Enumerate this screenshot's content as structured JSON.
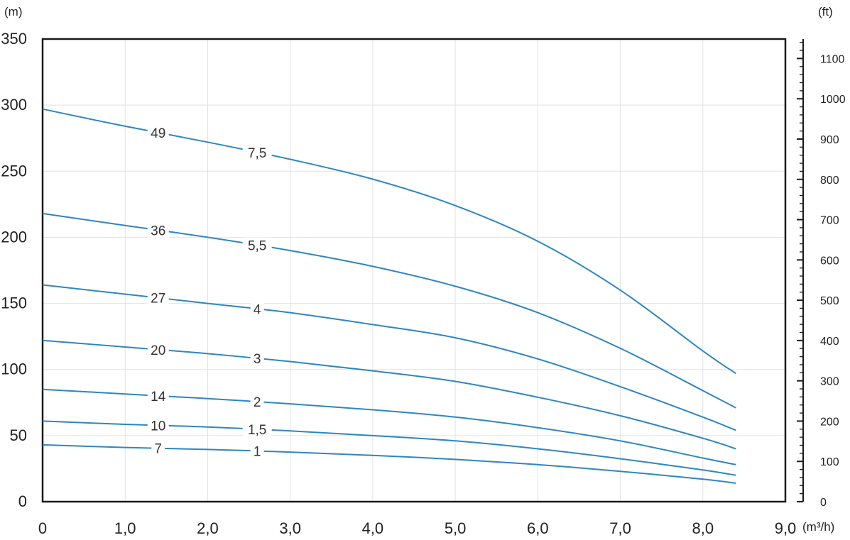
{
  "chart_data": {
    "type": "line",
    "title": "",
    "xlabel": "",
    "ylabel": "",
    "x_unit": "(m³/h)",
    "y_unit_left": "(m)",
    "y_unit_right": "(ft)",
    "xlim": [
      0,
      9
    ],
    "ylim": [
      0,
      350
    ],
    "ylim_right_ft": [
      0,
      1148.3
    ],
    "grid": true,
    "legend": "none",
    "line_color": "#2e86c1",
    "x_tick_labels": [
      "0",
      "1,0",
      "2,0",
      "3,0",
      "4,0",
      "5,0",
      "6,0",
      "7,0",
      "8,0",
      "9,0"
    ],
    "y_tick_labels": [
      "0",
      "50",
      "100",
      "150",
      "200",
      "250",
      "300",
      "350"
    ],
    "y_right_tick_labels": [
      "0",
      "100",
      "200",
      "300",
      "400",
      "500",
      "600",
      "700",
      "800",
      "900",
      "1000",
      "1100"
    ],
    "x": [
      0,
      1,
      2,
      3,
      4,
      5,
      6,
      7,
      8,
      8.4
    ],
    "series": [
      {
        "stages": "7",
        "power": "1",
        "values": [
          43,
          41,
          39.5,
          37.5,
          35,
          32,
          28,
          23,
          17,
          14
        ]
      },
      {
        "stages": "10",
        "power": "1,5",
        "values": [
          61,
          58.5,
          56.5,
          53.5,
          50,
          46,
          40,
          32.5,
          24,
          20
        ]
      },
      {
        "stages": "14",
        "power": "2",
        "values": [
          85,
          81.5,
          78,
          74,
          69.5,
          64,
          56,
          46,
          33,
          28
        ]
      },
      {
        "stages": "20",
        "power": "3",
        "values": [
          122,
          117,
          112,
          106,
          99,
          91,
          79,
          65,
          48,
          40
        ]
      },
      {
        "stages": "27",
        "power": "4",
        "values": [
          164,
          157,
          150,
          143,
          134,
          124,
          108,
          87,
          64,
          54
        ]
      },
      {
        "stages": "36",
        "power": "5,5",
        "values": [
          218,
          209,
          200,
          190,
          178,
          163,
          143,
          116,
          84,
          71
        ]
      },
      {
        "stages": "49",
        "power": "7,5",
        "values": [
          297,
          284,
          272,
          259,
          244,
          224,
          197,
          160,
          114,
          97
        ]
      }
    ],
    "label_x_stages": 1.4,
    "label_x_power": 2.6
  }
}
